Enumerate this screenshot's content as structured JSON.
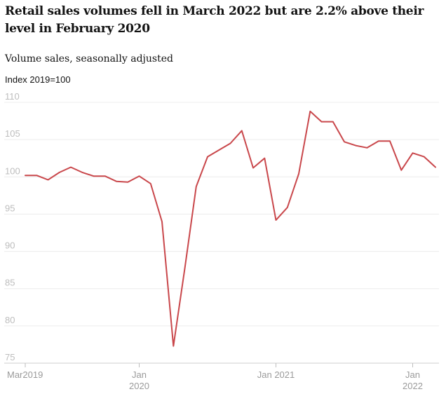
{
  "title": "Retail sales volumes fell in March 2022 but are 2.2% above their level in February 2020",
  "subtitle": "Volume sales, seasonally adjusted",
  "chart_data": {
    "type": "line",
    "title": "Retail sales volumes fell in March 2022 but are 2.2% above their level in February 2020",
    "subtitle": "Volume sales, seasonally adjusted",
    "ylabel": "Index 2019=100",
    "ylim": [
      75,
      110
    ],
    "yticks": [
      "110",
      "105",
      "100",
      "95",
      "90",
      "85",
      "80",
      "75"
    ],
    "xticks": [
      {
        "month": "2019-03",
        "lines": [
          "Mar2019"
        ]
      },
      {
        "month": "2020-01",
        "lines": [
          "Jan",
          "2020"
        ]
      },
      {
        "month": "2021-01",
        "lines": [
          "Jan 2021"
        ]
      },
      {
        "month": "2022-01",
        "lines": [
          "Jan",
          "2022"
        ]
      }
    ],
    "grid": true,
    "color": "#c9474b",
    "series": [
      {
        "x": [
          "2019-03",
          "2019-04",
          "2019-05",
          "2019-06",
          "2019-07",
          "2019-08",
          "2019-09",
          "2019-10",
          "2019-11",
          "2019-12",
          "2020-01",
          "2020-02",
          "2020-03",
          "2020-04",
          "2020-05",
          "2020-06",
          "2020-07",
          "2020-08",
          "2020-09",
          "2020-10",
          "2020-11",
          "2020-12",
          "2021-01",
          "2021-02",
          "2021-03",
          "2021-04",
          "2021-05",
          "2021-06",
          "2021-07",
          "2021-08",
          "2021-09",
          "2021-10",
          "2021-11",
          "2021-12",
          "2022-01",
          "2022-02",
          "2022-03"
        ],
        "values": [
          100.2,
          100.2,
          99.6,
          100.6,
          101.3,
          100.6,
          100.1,
          100.1,
          99.4,
          99.3,
          100.1,
          99.1,
          94.0,
          77.3,
          87.7,
          98.7,
          102.7,
          103.6,
          104.5,
          106.2,
          101.2,
          102.5,
          94.2,
          95.9,
          100.4,
          108.8,
          107.4,
          107.4,
          104.7,
          104.2,
          103.9,
          104.8,
          104.8,
          100.9,
          103.2,
          102.7,
          101.3
        ]
      }
    ]
  }
}
